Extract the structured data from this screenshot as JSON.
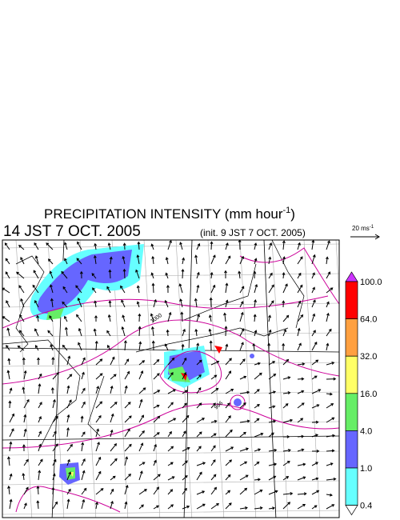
{
  "header": {
    "title": "PRECIPITATION INTENSITY (mm hour",
    "title_exponent": "-1",
    "title_close": ")",
    "valid_time": "14 JST 7 OCT. 2005",
    "init_time": "(init. 9 JST 7 OCT. 2005)"
  },
  "vector_legend": {
    "label": "20 ms",
    "exponent": "-1"
  },
  "colorbar": {
    "labels": [
      "100.0",
      "64.0",
      "32.0",
      "16.0",
      "4.0",
      "1.0",
      "0.4"
    ],
    "colors": [
      "#cc33ff",
      "#ff0000",
      "#ffa040",
      "#ffff66",
      "#66ee66",
      "#6666ff",
      "#66ffff",
      "#ffffff"
    ]
  },
  "map": {
    "contour_labels": [
      "1000",
      "996"
    ]
  }
}
